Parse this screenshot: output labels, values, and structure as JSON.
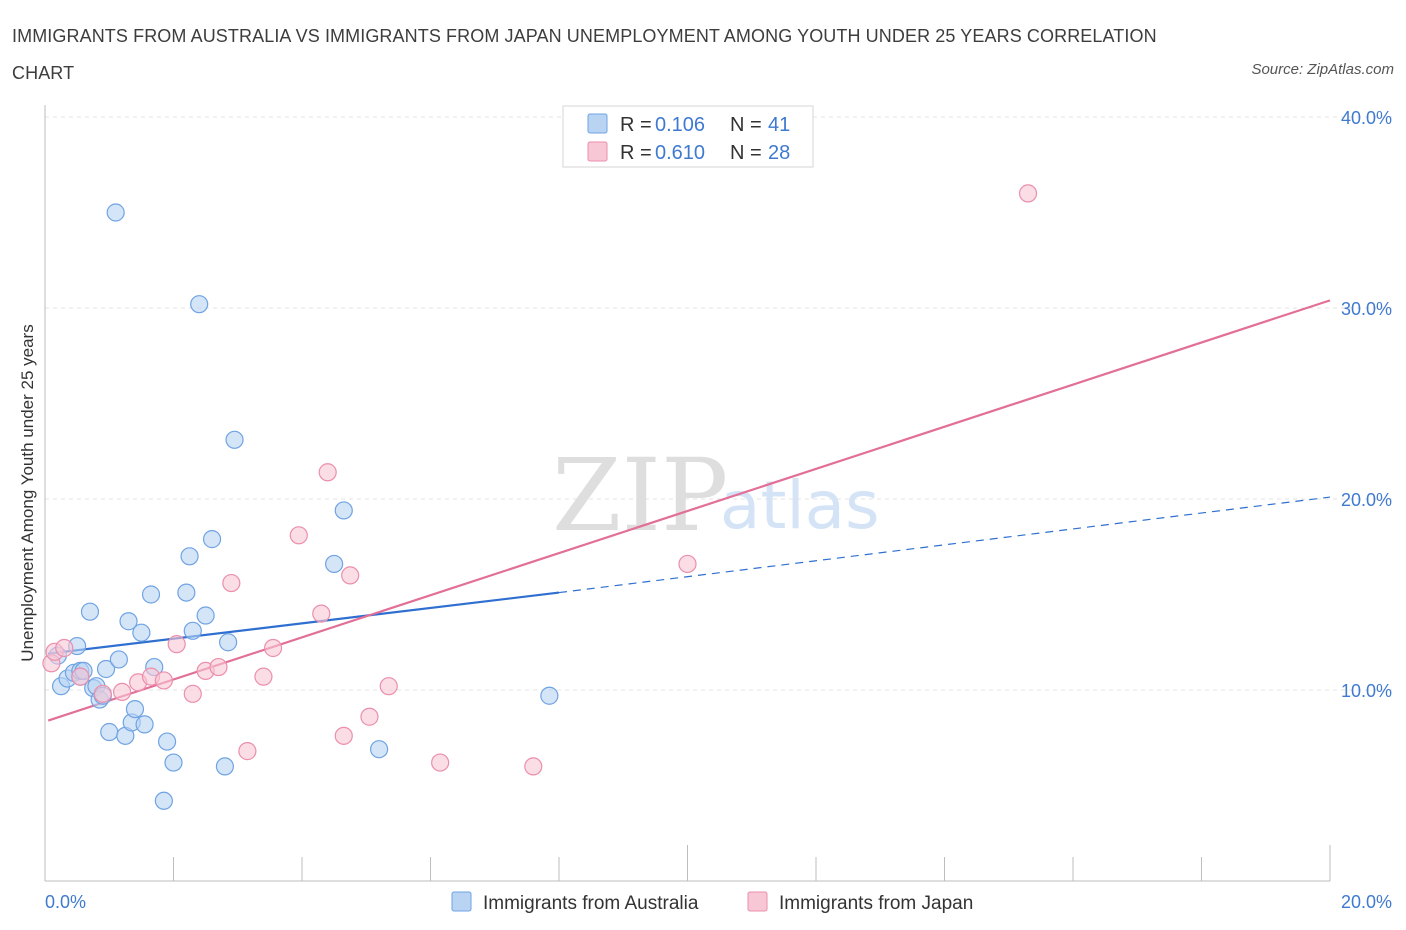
{
  "chart_data": {
    "type": "scatter",
    "title": "IMMIGRANTS FROM AUSTRALIA VS IMMIGRANTS FROM JAPAN UNEMPLOYMENT AMONG YOUTH UNDER 25 YEARS CORRELATION CHART",
    "source": "Source: ZipAtlas.com",
    "ylabel": "Unemployment Among Youth under 25 years",
    "xlim": [
      0,
      20
    ],
    "ylim": [
      0,
      40
    ],
    "x_ticks": [
      {
        "value": 0,
        "label": "0.0%"
      },
      {
        "value": 20,
        "label": "20.0%"
      }
    ],
    "y_ticks": [
      {
        "value": 10,
        "label": "10.0%"
      },
      {
        "value": 20,
        "label": "20.0%"
      },
      {
        "value": 30,
        "label": "30.0%"
      },
      {
        "value": 40,
        "label": "40.0%"
      }
    ],
    "legend": {
      "r_label": "R =",
      "n_label": "N =",
      "entries": [
        {
          "r": "0.106",
          "n": "41"
        },
        {
          "r": "0.610",
          "n": "28"
        }
      ]
    },
    "watermark": {
      "zip": "ZIP",
      "atlas": "atlas"
    },
    "series": [
      {
        "name": "Immigrants from Australia",
        "color": "#6fa3e3",
        "fill": "#b9d3f3",
        "trend": {
          "x_start": 0.05,
          "y_start": 11.9,
          "x_end": 8.0,
          "y_end": 15.1,
          "dash_x_end": 20.0,
          "dash_y_end": 20.1,
          "line_color": "#2f6fd0"
        },
        "points": [
          {
            "x": 0.2,
            "y": 11.8
          },
          {
            "x": 0.25,
            "y": 10.2
          },
          {
            "x": 0.35,
            "y": 10.6
          },
          {
            "x": 0.45,
            "y": 10.9
          },
          {
            "x": 0.5,
            "y": 12.3
          },
          {
            "x": 0.55,
            "y": 10.7
          },
          {
            "x": 0.55,
            "y": 11.0
          },
          {
            "x": 0.6,
            "y": 11.0
          },
          {
            "x": 0.75,
            "y": 10.1
          },
          {
            "x": 0.7,
            "y": 14.1
          },
          {
            "x": 0.8,
            "y": 10.2
          },
          {
            "x": 0.85,
            "y": 9.5
          },
          {
            "x": 0.9,
            "y": 9.7
          },
          {
            "x": 0.95,
            "y": 11.1
          },
          {
            "x": 1.0,
            "y": 7.8
          },
          {
            "x": 1.1,
            "y": 35.0
          },
          {
            "x": 1.15,
            "y": 11.6
          },
          {
            "x": 1.25,
            "y": 7.6
          },
          {
            "x": 1.3,
            "y": 13.6
          },
          {
            "x": 1.35,
            "y": 8.3
          },
          {
            "x": 1.4,
            "y": 9.0
          },
          {
            "x": 1.5,
            "y": 13.0
          },
          {
            "x": 1.55,
            "y": 8.2
          },
          {
            "x": 1.65,
            "y": 15.0
          },
          {
            "x": 1.7,
            "y": 11.2
          },
          {
            "x": 1.85,
            "y": 4.2
          },
          {
            "x": 1.9,
            "y": 7.3
          },
          {
            "x": 2.0,
            "y": 6.2
          },
          {
            "x": 2.2,
            "y": 15.1
          },
          {
            "x": 2.25,
            "y": 17.0
          },
          {
            "x": 2.3,
            "y": 13.1
          },
          {
            "x": 2.4,
            "y": 30.2
          },
          {
            "x": 2.5,
            "y": 13.9
          },
          {
            "x": 2.6,
            "y": 17.9
          },
          {
            "x": 2.8,
            "y": 6.0
          },
          {
            "x": 2.85,
            "y": 12.5
          },
          {
            "x": 2.95,
            "y": 23.1
          },
          {
            "x": 4.5,
            "y": 16.6
          },
          {
            "x": 4.65,
            "y": 19.4
          },
          {
            "x": 5.2,
            "y": 6.9
          },
          {
            "x": 7.85,
            "y": 9.7
          }
        ]
      },
      {
        "name": "Immigrants from Japan",
        "color": "#eb8fac",
        "fill": "#f8c7d6",
        "trend": {
          "x_start": 0.05,
          "y_start": 8.4,
          "x_end": 20.0,
          "y_end": 30.4,
          "line_color": "#e26f97"
        },
        "points": [
          {
            "x": 0.1,
            "y": 11.4
          },
          {
            "x": 0.15,
            "y": 12.0
          },
          {
            "x": 0.3,
            "y": 12.2
          },
          {
            "x": 0.55,
            "y": 10.7
          },
          {
            "x": 0.9,
            "y": 9.8
          },
          {
            "x": 1.2,
            "y": 9.9
          },
          {
            "x": 1.45,
            "y": 10.4
          },
          {
            "x": 1.65,
            "y": 10.7
          },
          {
            "x": 1.85,
            "y": 10.5
          },
          {
            "x": 2.05,
            "y": 12.4
          },
          {
            "x": 2.3,
            "y": 9.8
          },
          {
            "x": 2.5,
            "y": 11.0
          },
          {
            "x": 2.7,
            "y": 11.2
          },
          {
            "x": 2.9,
            "y": 15.6
          },
          {
            "x": 3.15,
            "y": 6.8
          },
          {
            "x": 3.4,
            "y": 10.7
          },
          {
            "x": 3.55,
            "y": 12.2
          },
          {
            "x": 3.95,
            "y": 18.1
          },
          {
            "x": 4.3,
            "y": 14.0
          },
          {
            "x": 4.4,
            "y": 21.4
          },
          {
            "x": 4.65,
            "y": 7.6
          },
          {
            "x": 4.75,
            "y": 16.0
          },
          {
            "x": 5.05,
            "y": 8.6
          },
          {
            "x": 5.35,
            "y": 10.2
          },
          {
            "x": 6.15,
            "y": 6.2
          },
          {
            "x": 7.6,
            "y": 6.0
          },
          {
            "x": 10.0,
            "y": 16.6
          },
          {
            "x": 15.3,
            "y": 36.0
          }
        ]
      }
    ]
  }
}
